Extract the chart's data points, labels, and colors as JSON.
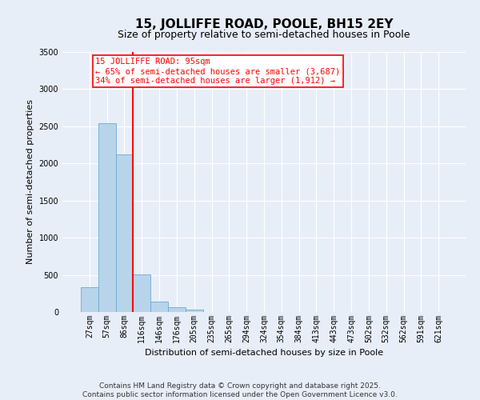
{
  "title": "15, JOLLIFFE ROAD, POOLE, BH15 2EY",
  "subtitle": "Size of property relative to semi-detached houses in Poole",
  "xlabel": "Distribution of semi-detached houses by size in Poole",
  "ylabel": "Number of semi-detached properties",
  "bins": [
    "27sqm",
    "57sqm",
    "86sqm",
    "116sqm",
    "146sqm",
    "176sqm",
    "205sqm",
    "235sqm",
    "265sqm",
    "294sqm",
    "324sqm",
    "354sqm",
    "384sqm",
    "413sqm",
    "443sqm",
    "473sqm",
    "502sqm",
    "532sqm",
    "562sqm",
    "591sqm",
    "621sqm"
  ],
  "values": [
    330,
    2540,
    2120,
    510,
    140,
    65,
    30,
    0,
    0,
    0,
    0,
    0,
    0,
    0,
    0,
    0,
    0,
    0,
    0,
    0,
    0
  ],
  "bar_color": "#b8d4ea",
  "bar_edge_color": "#6aaad4",
  "vline_x": 2.5,
  "annotation_text_line1": "15 JOLLIFFE ROAD: 95sqm",
  "annotation_text_line2": "← 65% of semi-detached houses are smaller (3,687)",
  "annotation_text_line3": "34% of semi-detached houses are larger (1,912) →",
  "annotation_color": "red",
  "annotation_box_color": "white",
  "vline_color": "red",
  "ylim": [
    0,
    3500
  ],
  "yticks": [
    0,
    500,
    1000,
    1500,
    2000,
    2500,
    3000,
    3500
  ],
  "background_color": "#e8eef8",
  "grid_color": "#ffffff",
  "footer_line1": "Contains HM Land Registry data © Crown copyright and database right 2025.",
  "footer_line2": "Contains public sector information licensed under the Open Government Licence v3.0.",
  "title_fontsize": 11,
  "subtitle_fontsize": 9,
  "axis_label_fontsize": 8,
  "tick_fontsize": 7,
  "annotation_fontsize": 7.5,
  "footer_fontsize": 6.5
}
